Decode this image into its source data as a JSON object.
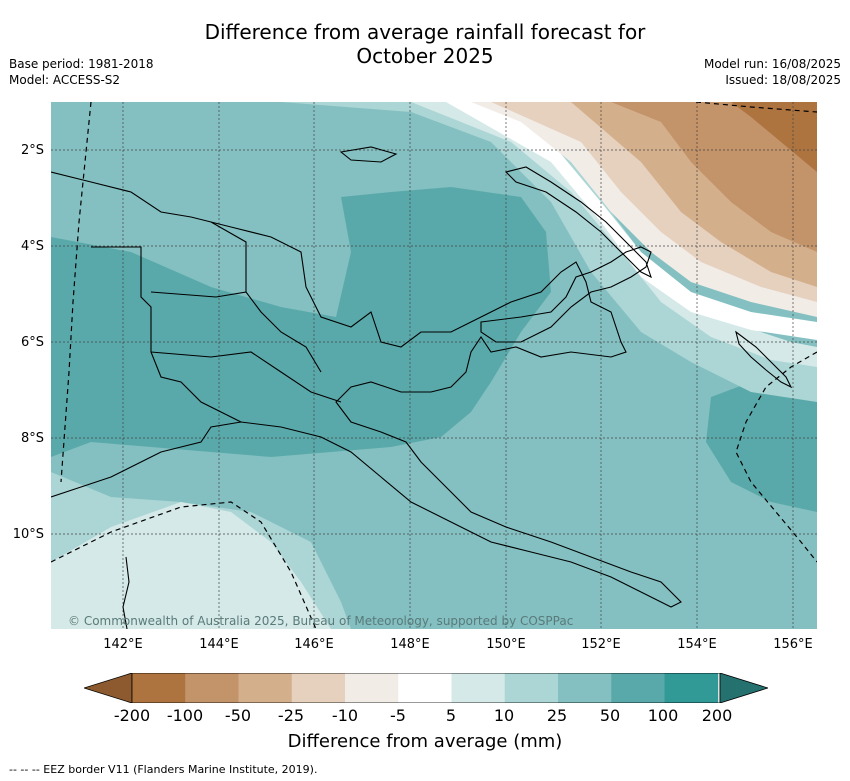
{
  "title": "Difference from average rainfall forecast for October 2025",
  "title_line1": "Difference from average rainfall forecast for",
  "title_line2": "October 2025",
  "base_period": "Base period: 1981-2018",
  "model": "Model: ACCESS-S2",
  "model_run": "Model run: 16/08/2025",
  "issued": "Issued: 18/08/2025",
  "copyright": "© Commonwealth of Australia 2025, Bureau of Meteorology, supported by COSPPac",
  "lat_labels": [
    "2°S",
    "4°S",
    "6°S",
    "8°S",
    "10°S"
  ],
  "lon_labels": [
    "142°E",
    "144°E",
    "146°E",
    "148°E",
    "150°E",
    "152°E",
    "154°E",
    "156°E"
  ],
  "colorbar": {
    "label": "Difference from average (mm)",
    "ticks": [
      "-200",
      "-100",
      "-50",
      "-25",
      "-10",
      "-5",
      "5",
      "10",
      "25",
      "50",
      "100",
      "200"
    ],
    "colors": [
      "#8c5a2e",
      "#ae7440",
      "#c3936a",
      "#d4af8c",
      "#e6d1bf",
      "#f2ece7",
      "#ffffff",
      "#d4e9e8",
      "#acd5d5",
      "#84c0c1",
      "#5aa9aa",
      "#319996",
      "#24716f"
    ]
  },
  "eez_legend": "-- -- -- EEZ border V11 (Flanders Marine Institute, 2019)."
}
